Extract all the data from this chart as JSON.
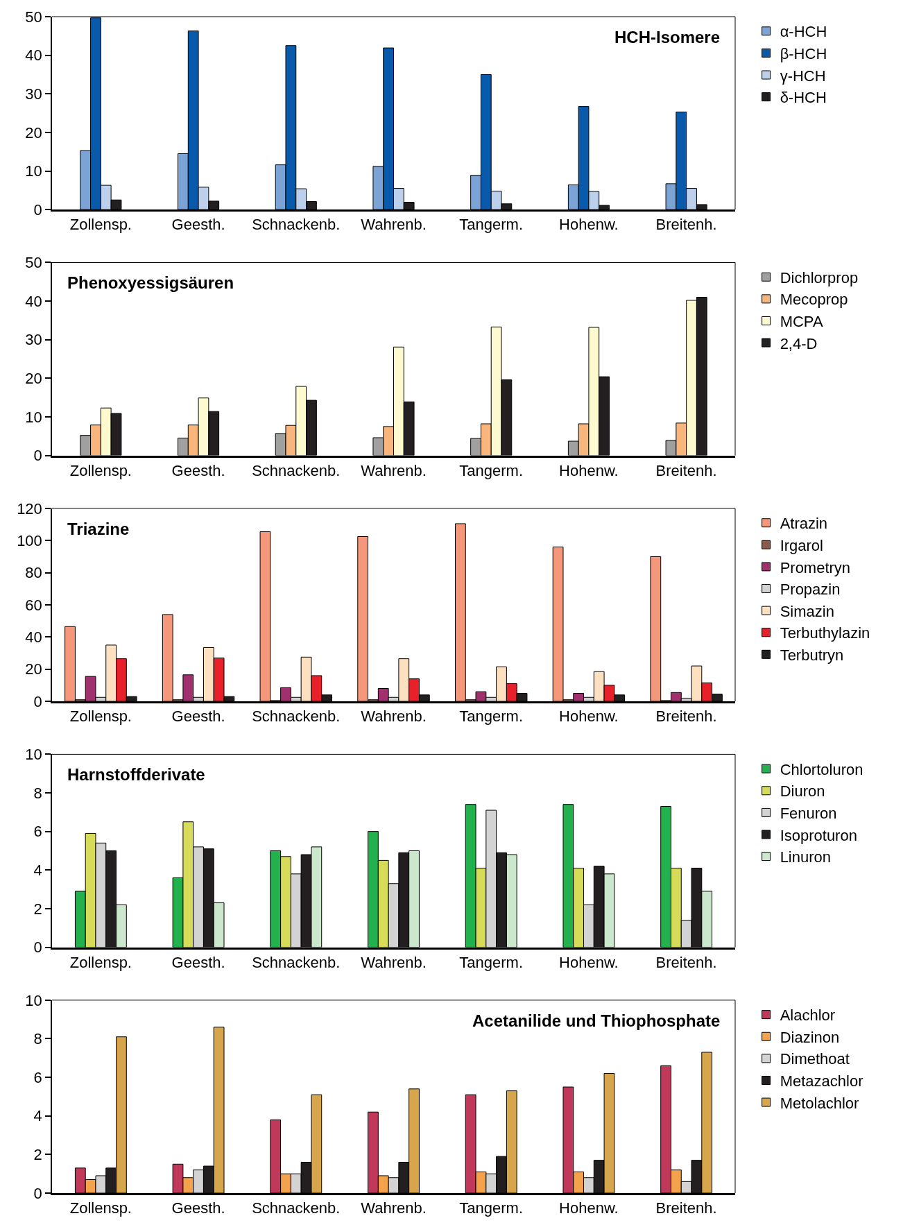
{
  "chart_data": [
    {
      "type": "bar",
      "title": "HCH-Isomere",
      "categories": [
        "Zollensp.",
        "Geesth.",
        "Schnackenb.",
        "Wahrenb.",
        "Tangerm.",
        "Hohenw.",
        "Breitenh."
      ],
      "ylim": [
        0,
        50
      ],
      "yticks": [
        0,
        10,
        20,
        30,
        40,
        50
      ],
      "legend": "right",
      "series": [
        {
          "name": "α-HCH",
          "color": "#7ba3d6",
          "values": [
            15.3,
            14.5,
            11.6,
            11.2,
            8.9,
            6.4,
            6.7
          ]
        },
        {
          "name": "β-HCH",
          "color": "#0a5aab",
          "values": [
            49.7,
            46.3,
            42.5,
            41.9,
            35,
            26.7,
            25.3
          ]
        },
        {
          "name": "γ-HCH",
          "color": "#bcd0ec",
          "values": [
            6.3,
            5.8,
            5.4,
            5.5,
            4.8,
            4.7,
            5.5
          ]
        },
        {
          "name": "δ-HCH",
          "color": "#231f20",
          "values": [
            2.5,
            2.2,
            2.1,
            1.9,
            1.5,
            1.1,
            1.3
          ]
        }
      ]
    },
    {
      "type": "bar",
      "title": "Phenoxyessigsäuren",
      "categories": [
        "Zollensp.",
        "Geesth.",
        "Schnackenb.",
        "Wahrenb.",
        "Tangerm.",
        "Hohenw.",
        "Breitenh."
      ],
      "ylim": [
        0,
        50
      ],
      "yticks": [
        0,
        10,
        20,
        30,
        40,
        50
      ],
      "legend": "right",
      "series": [
        {
          "name": "Dichlorprop",
          "color": "#a0a0a0",
          "values": [
            5.2,
            4.5,
            5.7,
            4.6,
            4.4,
            3.7,
            3.9
          ]
        },
        {
          "name": "Mecoprop",
          "color": "#f8b57c",
          "values": [
            7.9,
            7.9,
            7.8,
            7.5,
            8.2,
            8.2,
            8.4
          ]
        },
        {
          "name": "MCPA",
          "color": "#fefad0",
          "values": [
            12.3,
            14.9,
            17.9,
            28.1,
            33.3,
            33.2,
            40.2
          ]
        },
        {
          "name": "2,4-D",
          "color": "#231f20",
          "values": [
            10.9,
            11.4,
            14.3,
            13.9,
            19.6,
            20.4,
            41.0
          ]
        }
      ]
    },
    {
      "type": "bar",
      "title": "Triazine",
      "categories": [
        "Zollensp.",
        "Geesth.",
        "Schnackenb.",
        "Wahrenb.",
        "Tangerm.",
        "Hohenw.",
        "Breitenh."
      ],
      "ylim": [
        0,
        120
      ],
      "yticks": [
        0,
        20,
        40,
        60,
        80,
        100,
        120
      ],
      "legend": "right",
      "series": [
        {
          "name": "Atrazin",
          "color": "#f4977a",
          "values": [
            46.5,
            54,
            105.5,
            102.5,
            110.5,
            96,
            90
          ]
        },
        {
          "name": "Irgarol",
          "color": "#8c5a48",
          "values": [
            1,
            1,
            0.5,
            1,
            1,
            1,
            0.5
          ]
        },
        {
          "name": "Prometryn",
          "color": "#a1306e",
          "values": [
            15.5,
            16.5,
            8.5,
            8,
            6,
            5,
            5.5
          ]
        },
        {
          "name": "Propazin",
          "color": "#d3d3d3",
          "values": [
            2.5,
            2.5,
            2.5,
            2.5,
            2.5,
            2.5,
            2
          ]
        },
        {
          "name": "Simazin",
          "color": "#fde0c0",
          "values": [
            35,
            33.5,
            27.5,
            26.5,
            21.5,
            18.5,
            22
          ]
        },
        {
          "name": "Terbuthylazin",
          "color": "#e8202a",
          "values": [
            26.5,
            27,
            16,
            14,
            11,
            10,
            11.5
          ]
        },
        {
          "name": "Terbutryn",
          "color": "#231f20",
          "values": [
            3,
            3,
            4,
            4,
            5,
            4,
            4.5
          ]
        }
      ]
    },
    {
      "type": "bar",
      "title": "Harnstoffderivate",
      "categories": [
        "Zollensp.",
        "Geesth.",
        "Schnackenb.",
        "Wahrenb.",
        "Tangerm.",
        "Hohenw.",
        "Breitenh."
      ],
      "ylim": [
        0,
        10
      ],
      "yticks": [
        0,
        2,
        4,
        6,
        8,
        10
      ],
      "legend": "right",
      "series": [
        {
          "name": "Chlortoluron",
          "color": "#22b14c",
          "values": [
            2.9,
            3.6,
            5.0,
            6.0,
            7.4,
            7.4,
            7.3
          ]
        },
        {
          "name": "Diuron",
          "color": "#d6dc5a",
          "values": [
            5.9,
            6.5,
            4.7,
            4.5,
            4.1,
            4.1,
            4.1
          ]
        },
        {
          "name": "Fenuron",
          "color": "#d3d3d3",
          "values": [
            5.4,
            5.2,
            3.8,
            3.3,
            7.1,
            2.2,
            1.4
          ]
        },
        {
          "name": "Isoproturon",
          "color": "#231f20",
          "values": [
            5.0,
            5.1,
            4.8,
            4.9,
            4.9,
            4.2,
            4.1
          ]
        },
        {
          "name": "Linuron",
          "color": "#cce8cc",
          "values": [
            2.2,
            2.3,
            5.2,
            5.0,
            4.8,
            3.8,
            2.9
          ]
        }
      ]
    },
    {
      "type": "bar",
      "title": "Acetanilide und Thiophosphate",
      "categories": [
        "Zollensp.",
        "Geesth.",
        "Schnackenb.",
        "Wahrenb.",
        "Tangerm.",
        "Hohenw.",
        "Breitenh."
      ],
      "ylim": [
        0,
        10
      ],
      "yticks": [
        0,
        2,
        4,
        6,
        8,
        10
      ],
      "legend": "right",
      "series": [
        {
          "name": "Alachlor",
          "color": "#c0385a",
          "values": [
            1.3,
            1.5,
            3.8,
            4.2,
            5.1,
            5.5,
            6.6
          ]
        },
        {
          "name": "Diazinon",
          "color": "#f5a24c",
          "values": [
            0.7,
            0.8,
            1.0,
            0.9,
            1.1,
            1.1,
            1.2
          ]
        },
        {
          "name": "Dimethoat",
          "color": "#d3d3d3",
          "values": [
            0.9,
            1.2,
            1.0,
            0.8,
            1.0,
            0.8,
            0.6
          ]
        },
        {
          "name": "Metazachlor",
          "color": "#231f20",
          "values": [
            1.3,
            1.4,
            1.6,
            1.6,
            1.9,
            1.7,
            1.7
          ]
        },
        {
          "name": "Metolachlor",
          "color": "#d6a54c",
          "values": [
            8.1,
            8.6,
            5.1,
            5.4,
            5.3,
            6.2,
            7.3
          ]
        }
      ]
    }
  ]
}
